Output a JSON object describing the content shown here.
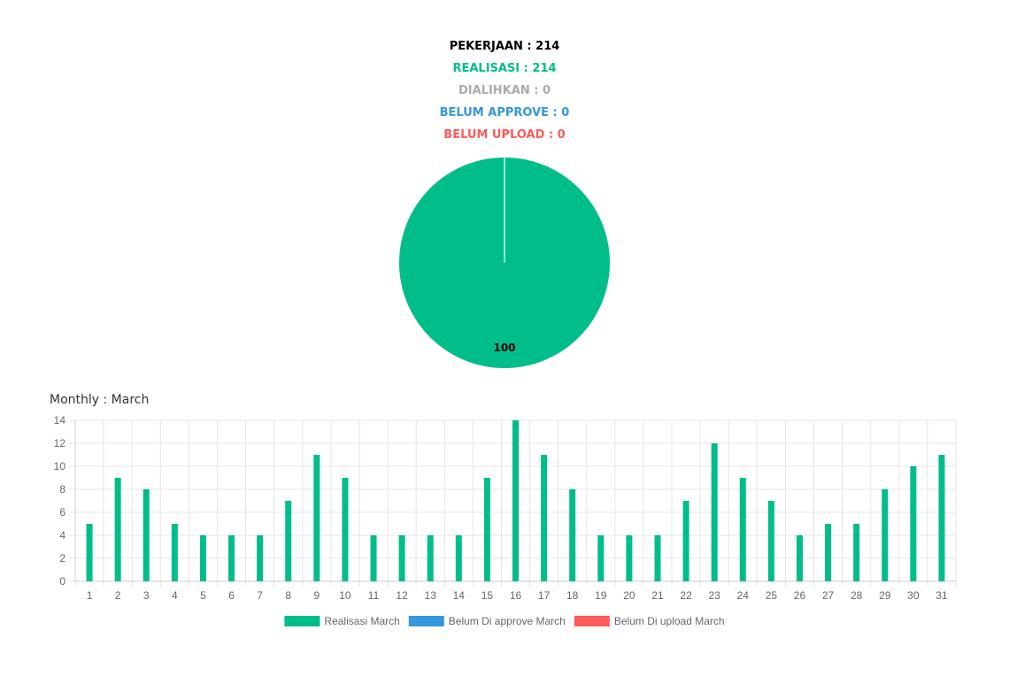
{
  "summary": {
    "pekerjaan": "PEKERJAAN : 214",
    "realisasi": "REALISASI : 214",
    "dialihkan": "DIALIHKAN : 0",
    "belum_approve": "BELUM APPROVE : 0",
    "belum_upload": "BELUM UPLOAD : 0"
  },
  "colors": {
    "pekerjaan": "#000000",
    "realisasi": "#00bd8a",
    "dialihkan": "#aaaaaa",
    "belum_approve": "#3498db",
    "belum_upload": "#ff5b5b",
    "grid": "#e6e6e6",
    "axis": "#666666"
  },
  "monthly": {
    "title": "Monthly : March"
  },
  "chart_data": [
    {
      "type": "pie",
      "labels": [
        "REALISASI",
        "DIALIHKAN",
        "BELUM APPROVE",
        "BELUM UPLOAD"
      ],
      "values": [
        100,
        0,
        0,
        0
      ],
      "data_labels": [
        "100"
      ],
      "colors": [
        "#00bd8a",
        "#aaaaaa",
        "#3498db",
        "#ff5b5b"
      ]
    },
    {
      "type": "bar",
      "title": "Monthly : March",
      "categories": [
        "1",
        "2",
        "3",
        "4",
        "5",
        "6",
        "7",
        "8",
        "9",
        "10",
        "11",
        "12",
        "13",
        "14",
        "15",
        "16",
        "17",
        "18",
        "19",
        "20",
        "21",
        "22",
        "23",
        "24",
        "25",
        "26",
        "27",
        "28",
        "29",
        "30",
        "31"
      ],
      "series": [
        {
          "name": "Realisasi March",
          "color": "#00bd8a",
          "values": [
            5,
            9,
            8,
            5,
            4,
            4,
            4,
            7,
            11,
            9,
            4,
            4,
            4,
            4,
            9,
            14,
            11,
            8,
            4,
            4,
            4,
            7,
            12,
            9,
            7,
            4,
            5,
            5,
            8,
            10,
            11
          ]
        },
        {
          "name": "Belum Di approve March",
          "color": "#3498db",
          "values": [
            0,
            0,
            0,
            0,
            0,
            0,
            0,
            0,
            0,
            0,
            0,
            0,
            0,
            0,
            0,
            0,
            0,
            0,
            0,
            0,
            0,
            0,
            0,
            0,
            0,
            0,
            0,
            0,
            0,
            0,
            0
          ]
        },
        {
          "name": "Belum Di upload March",
          "color": "#ff5b5b",
          "values": [
            0,
            0,
            0,
            0,
            0,
            0,
            0,
            0,
            0,
            0,
            0,
            0,
            0,
            0,
            0,
            0,
            0,
            0,
            0,
            0,
            0,
            0,
            0,
            0,
            0,
            0,
            0,
            0,
            0,
            0,
            0
          ]
        }
      ],
      "ylim": [
        0,
        14
      ],
      "yticks": [
        0,
        2,
        4,
        6,
        8,
        10,
        12,
        14
      ],
      "grid": true,
      "legend": "bottom"
    }
  ]
}
